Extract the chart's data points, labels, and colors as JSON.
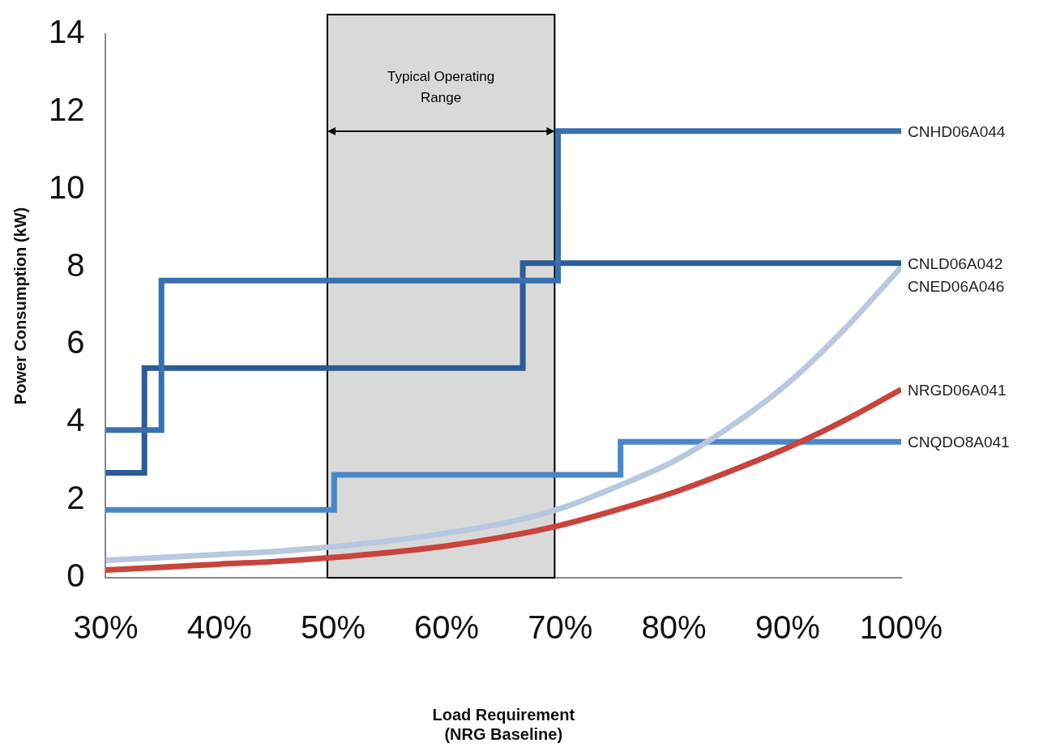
{
  "chart_data": {
    "type": "step",
    "xlabel": "Load Requirement\n(NRG Baseline)",
    "ylabel": "Power Consumption (kW)",
    "xlim": [
      30,
      100
    ],
    "xticks": [
      {
        "value": 30,
        "label": "30%"
      },
      {
        "value": 40,
        "label": "40%"
      },
      {
        "value": 50,
        "label": "50%"
      },
      {
        "value": 60,
        "label": "60%"
      },
      {
        "value": 70,
        "label": "70%"
      },
      {
        "value": 80,
        "label": "80%"
      },
      {
        "value": 90,
        "label": "90%"
      },
      {
        "value": 100,
        "label": "100%"
      }
    ],
    "ylim": [
      0,
      14
    ],
    "yticks": [
      0,
      2,
      4,
      6,
      8,
      10,
      12,
      14
    ],
    "grid": false,
    "legend": false,
    "series": [
      {
        "name": "CNHD06A044",
        "color": "#3a6fb0",
        "x": [
          30,
          34.9,
          69.8,
          100
        ],
        "values": [
          3.8,
          7.65,
          11.5,
          11.5
        ]
      },
      {
        "name": "CNLD06A042",
        "color": "#2d5b94",
        "x": [
          30,
          33.4,
          66.7,
          100
        ],
        "values": [
          2.7,
          5.4,
          8.1,
          8.1
        ]
      },
      {
        "name": "CNED06A046",
        "type": "line",
        "color": "#b8c8e0",
        "x": [
          30,
          35,
          40,
          45,
          50,
          55,
          60,
          65,
          70,
          75,
          80,
          85,
          90,
          95,
          100
        ],
        "values": [
          0.45,
          0.52,
          0.6,
          0.68,
          0.8,
          0.95,
          1.15,
          1.4,
          1.78,
          2.35,
          3.0,
          3.9,
          5.0,
          6.4,
          8.0
        ]
      },
      {
        "name": "NRGD06A041",
        "type": "line",
        "color": "#c8443c",
        "x": [
          30,
          35,
          40,
          45,
          50,
          55,
          60,
          65,
          70,
          75,
          80,
          85,
          90,
          95,
          100
        ],
        "values": [
          0.2,
          0.27,
          0.35,
          0.42,
          0.52,
          0.65,
          0.82,
          1.05,
          1.35,
          1.75,
          2.2,
          2.75,
          3.35,
          4.05,
          4.85
        ]
      },
      {
        "name": "CNQDO8A041",
        "color": "#4a86c8",
        "x": [
          30,
          50.1,
          75.3,
          100
        ],
        "values": [
          1.75,
          2.65,
          3.5,
          3.5
        ]
      }
    ],
    "bands": [
      {
        "axis": "x",
        "from": 49.5,
        "to": 69.5,
        "label": "Typical Operating\nRange",
        "color": "#d9d9d9"
      }
    ]
  }
}
